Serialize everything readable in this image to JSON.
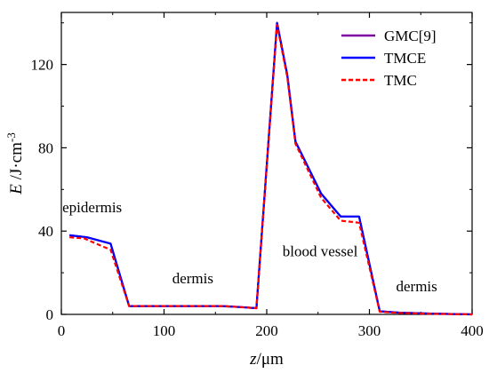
{
  "chart_data": {
    "type": "line",
    "xlabel": {
      "italic": "z",
      "unit": "/μm"
    },
    "ylabel": {
      "italic": "E",
      "unit": " /J·cm",
      "sup": "-3"
    },
    "xlim": [
      0,
      400
    ],
    "ylim": [
      0,
      145
    ],
    "xticks": [
      0,
      100,
      200,
      300,
      400
    ],
    "yticks": [
      0,
      40,
      80,
      120
    ],
    "grid": false,
    "legend_position": "top-right",
    "annotations": [
      {
        "text": "epidermis",
        "x": 30,
        "y": 49
      },
      {
        "text": "dermis",
        "x": 128,
        "y": 15
      },
      {
        "text": "blood vessel",
        "x": 252,
        "y": 28
      },
      {
        "text": "dermis",
        "x": 346,
        "y": 11
      }
    ],
    "series": [
      {
        "name": "GMC[9]",
        "color": "#7f00a0",
        "dash": "solid",
        "points": [
          [
            8,
            38
          ],
          [
            25,
            37
          ],
          [
            48,
            34
          ],
          [
            66,
            4
          ],
          [
            100,
            4
          ],
          [
            155,
            4
          ],
          [
            175,
            3.5
          ],
          [
            190,
            3
          ],
          [
            210,
            140
          ],
          [
            220,
            115
          ],
          [
            228,
            83
          ],
          [
            253,
            58
          ],
          [
            272,
            47
          ],
          [
            290,
            47
          ],
          [
            310,
            1.5
          ],
          [
            330,
            0.8
          ],
          [
            360,
            0.4
          ],
          [
            400,
            0
          ]
        ]
      },
      {
        "name": "TMCE",
        "color": "#0000ff",
        "dash": "solid",
        "points": [
          [
            8,
            38
          ],
          [
            25,
            37
          ],
          [
            48,
            34
          ],
          [
            66,
            4
          ],
          [
            100,
            4
          ],
          [
            155,
            4
          ],
          [
            175,
            3.5
          ],
          [
            190,
            3
          ],
          [
            210,
            140
          ],
          [
            220,
            115
          ],
          [
            228,
            83
          ],
          [
            253,
            58
          ],
          [
            272,
            47
          ],
          [
            290,
            47
          ],
          [
            310,
            1.5
          ],
          [
            330,
            0.8
          ],
          [
            360,
            0.4
          ],
          [
            400,
            0
          ]
        ]
      },
      {
        "name": "TMC",
        "color": "#ff0000",
        "dash": "dashed",
        "points": [
          [
            8,
            37
          ],
          [
            22,
            36.5
          ],
          [
            48,
            31
          ],
          [
            66,
            4
          ],
          [
            100,
            4
          ],
          [
            155,
            4
          ],
          [
            175,
            3.5
          ],
          [
            190,
            3
          ],
          [
            210,
            139
          ],
          [
            220,
            114
          ],
          [
            228,
            82
          ],
          [
            253,
            56
          ],
          [
            272,
            45
          ],
          [
            290,
            44
          ],
          [
            310,
            1.3
          ],
          [
            330,
            0.7
          ],
          [
            360,
            0.3
          ],
          [
            400,
            0
          ]
        ]
      }
    ]
  }
}
